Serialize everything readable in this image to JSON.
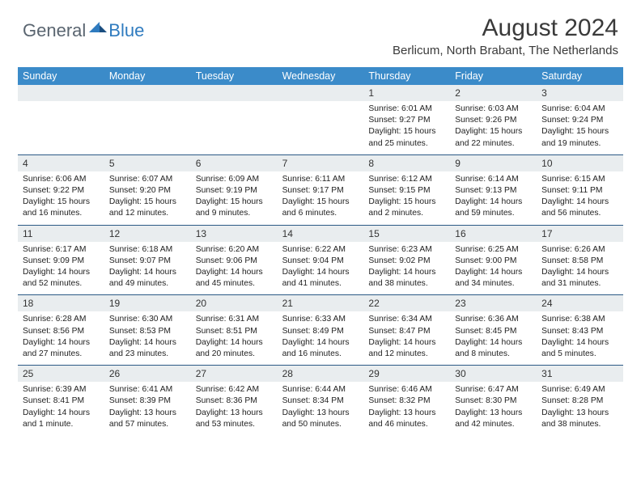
{
  "logo": {
    "text1": "General",
    "text2": "Blue"
  },
  "title": "August 2024",
  "location": "Berlicum, North Brabant, The Netherlands",
  "colors": {
    "header_bg": "#3b8bc9",
    "header_text": "#ffffff",
    "divider": "#2b5a85",
    "daynum_bg": "#e9edef",
    "logo_gray": "#5a6570",
    "logo_blue": "#2f7bbf"
  },
  "dayNames": [
    "Sunday",
    "Monday",
    "Tuesday",
    "Wednesday",
    "Thursday",
    "Friday",
    "Saturday"
  ],
  "weeks": [
    {
      "nums": [
        "",
        "",
        "",
        "",
        "1",
        "2",
        "3"
      ],
      "details": [
        {},
        {},
        {},
        {},
        {
          "sunrise": "Sunrise: 6:01 AM",
          "sunset": "Sunset: 9:27 PM",
          "daylight": "Daylight: 15 hours and 25 minutes."
        },
        {
          "sunrise": "Sunrise: 6:03 AM",
          "sunset": "Sunset: 9:26 PM",
          "daylight": "Daylight: 15 hours and 22 minutes."
        },
        {
          "sunrise": "Sunrise: 6:04 AM",
          "sunset": "Sunset: 9:24 PM",
          "daylight": "Daylight: 15 hours and 19 minutes."
        }
      ]
    },
    {
      "nums": [
        "4",
        "5",
        "6",
        "7",
        "8",
        "9",
        "10"
      ],
      "details": [
        {
          "sunrise": "Sunrise: 6:06 AM",
          "sunset": "Sunset: 9:22 PM",
          "daylight": "Daylight: 15 hours and 16 minutes."
        },
        {
          "sunrise": "Sunrise: 6:07 AM",
          "sunset": "Sunset: 9:20 PM",
          "daylight": "Daylight: 15 hours and 12 minutes."
        },
        {
          "sunrise": "Sunrise: 6:09 AM",
          "sunset": "Sunset: 9:19 PM",
          "daylight": "Daylight: 15 hours and 9 minutes."
        },
        {
          "sunrise": "Sunrise: 6:11 AM",
          "sunset": "Sunset: 9:17 PM",
          "daylight": "Daylight: 15 hours and 6 minutes."
        },
        {
          "sunrise": "Sunrise: 6:12 AM",
          "sunset": "Sunset: 9:15 PM",
          "daylight": "Daylight: 15 hours and 2 minutes."
        },
        {
          "sunrise": "Sunrise: 6:14 AM",
          "sunset": "Sunset: 9:13 PM",
          "daylight": "Daylight: 14 hours and 59 minutes."
        },
        {
          "sunrise": "Sunrise: 6:15 AM",
          "sunset": "Sunset: 9:11 PM",
          "daylight": "Daylight: 14 hours and 56 minutes."
        }
      ]
    },
    {
      "nums": [
        "11",
        "12",
        "13",
        "14",
        "15",
        "16",
        "17"
      ],
      "details": [
        {
          "sunrise": "Sunrise: 6:17 AM",
          "sunset": "Sunset: 9:09 PM",
          "daylight": "Daylight: 14 hours and 52 minutes."
        },
        {
          "sunrise": "Sunrise: 6:18 AM",
          "sunset": "Sunset: 9:07 PM",
          "daylight": "Daylight: 14 hours and 49 minutes."
        },
        {
          "sunrise": "Sunrise: 6:20 AM",
          "sunset": "Sunset: 9:06 PM",
          "daylight": "Daylight: 14 hours and 45 minutes."
        },
        {
          "sunrise": "Sunrise: 6:22 AM",
          "sunset": "Sunset: 9:04 PM",
          "daylight": "Daylight: 14 hours and 41 minutes."
        },
        {
          "sunrise": "Sunrise: 6:23 AM",
          "sunset": "Sunset: 9:02 PM",
          "daylight": "Daylight: 14 hours and 38 minutes."
        },
        {
          "sunrise": "Sunrise: 6:25 AM",
          "sunset": "Sunset: 9:00 PM",
          "daylight": "Daylight: 14 hours and 34 minutes."
        },
        {
          "sunrise": "Sunrise: 6:26 AM",
          "sunset": "Sunset: 8:58 PM",
          "daylight": "Daylight: 14 hours and 31 minutes."
        }
      ]
    },
    {
      "nums": [
        "18",
        "19",
        "20",
        "21",
        "22",
        "23",
        "24"
      ],
      "details": [
        {
          "sunrise": "Sunrise: 6:28 AM",
          "sunset": "Sunset: 8:56 PM",
          "daylight": "Daylight: 14 hours and 27 minutes."
        },
        {
          "sunrise": "Sunrise: 6:30 AM",
          "sunset": "Sunset: 8:53 PM",
          "daylight": "Daylight: 14 hours and 23 minutes."
        },
        {
          "sunrise": "Sunrise: 6:31 AM",
          "sunset": "Sunset: 8:51 PM",
          "daylight": "Daylight: 14 hours and 20 minutes."
        },
        {
          "sunrise": "Sunrise: 6:33 AM",
          "sunset": "Sunset: 8:49 PM",
          "daylight": "Daylight: 14 hours and 16 minutes."
        },
        {
          "sunrise": "Sunrise: 6:34 AM",
          "sunset": "Sunset: 8:47 PM",
          "daylight": "Daylight: 14 hours and 12 minutes."
        },
        {
          "sunrise": "Sunrise: 6:36 AM",
          "sunset": "Sunset: 8:45 PM",
          "daylight": "Daylight: 14 hours and 8 minutes."
        },
        {
          "sunrise": "Sunrise: 6:38 AM",
          "sunset": "Sunset: 8:43 PM",
          "daylight": "Daylight: 14 hours and 5 minutes."
        }
      ]
    },
    {
      "nums": [
        "25",
        "26",
        "27",
        "28",
        "29",
        "30",
        "31"
      ],
      "details": [
        {
          "sunrise": "Sunrise: 6:39 AM",
          "sunset": "Sunset: 8:41 PM",
          "daylight": "Daylight: 14 hours and 1 minute."
        },
        {
          "sunrise": "Sunrise: 6:41 AM",
          "sunset": "Sunset: 8:39 PM",
          "daylight": "Daylight: 13 hours and 57 minutes."
        },
        {
          "sunrise": "Sunrise: 6:42 AM",
          "sunset": "Sunset: 8:36 PM",
          "daylight": "Daylight: 13 hours and 53 minutes."
        },
        {
          "sunrise": "Sunrise: 6:44 AM",
          "sunset": "Sunset: 8:34 PM",
          "daylight": "Daylight: 13 hours and 50 minutes."
        },
        {
          "sunrise": "Sunrise: 6:46 AM",
          "sunset": "Sunset: 8:32 PM",
          "daylight": "Daylight: 13 hours and 46 minutes."
        },
        {
          "sunrise": "Sunrise: 6:47 AM",
          "sunset": "Sunset: 8:30 PM",
          "daylight": "Daylight: 13 hours and 42 minutes."
        },
        {
          "sunrise": "Sunrise: 6:49 AM",
          "sunset": "Sunset: 8:28 PM",
          "daylight": "Daylight: 13 hours and 38 minutes."
        }
      ]
    }
  ]
}
